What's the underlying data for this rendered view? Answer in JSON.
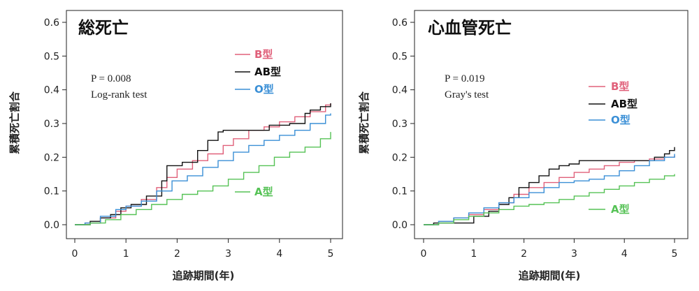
{
  "chart_data": [
    {
      "type": "line",
      "title": "総死亡",
      "xlabel": "追跡期間(年)",
      "ylabel": "累積死亡割合",
      "xlim": [
        0,
        5
      ],
      "ylim": [
        0,
        0.6
      ],
      "x_ticks": [
        "0",
        "1",
        "2",
        "3",
        "4",
        "5"
      ],
      "y_ticks": [
        "0.0",
        "0.1",
        "0.2",
        "0.3",
        "0.4",
        "0.5",
        "0.6"
      ],
      "stat_p": "P = 0.008",
      "stat_test": "Log-rank test",
      "step": true,
      "series": [
        {
          "name": "B型",
          "color": "#e0607a",
          "x": [
            0,
            0.2,
            0.5,
            0.8,
            1.0,
            1.3,
            1.6,
            1.8,
            2.0,
            2.3,
            2.6,
            2.9,
            3.1,
            3.4,
            3.7,
            4.0,
            4.3,
            4.6,
            4.9,
            5.0
          ],
          "y": [
            0,
            0.005,
            0.02,
            0.04,
            0.055,
            0.075,
            0.11,
            0.14,
            0.165,
            0.19,
            0.21,
            0.235,
            0.255,
            0.28,
            0.29,
            0.305,
            0.32,
            0.335,
            0.355,
            0.36
          ]
        },
        {
          "name": "AB型",
          "color": "#111111",
          "x": [
            0,
            0.3,
            0.5,
            0.7,
            0.9,
            1.1,
            1.4,
            1.7,
            1.8,
            2.1,
            2.4,
            2.6,
            2.8,
            2.9,
            3.2,
            3.5,
            3.8,
            4.1,
            4.2,
            4.5,
            4.6,
            4.8,
            5.0
          ],
          "y": [
            0,
            0.01,
            0.02,
            0.03,
            0.05,
            0.06,
            0.085,
            0.13,
            0.175,
            0.185,
            0.22,
            0.25,
            0.275,
            0.28,
            0.28,
            0.28,
            0.295,
            0.295,
            0.3,
            0.33,
            0.34,
            0.35,
            0.36
          ]
        },
        {
          "name": "O型",
          "color": "#3a8fd6",
          "x": [
            0,
            0.2,
            0.5,
            0.8,
            1.0,
            1.3,
            1.6,
            1.9,
            2.2,
            2.5,
            2.8,
            3.1,
            3.4,
            3.7,
            4.0,
            4.3,
            4.6,
            4.9,
            5.0
          ],
          "y": [
            0,
            0.005,
            0.025,
            0.045,
            0.055,
            0.07,
            0.1,
            0.13,
            0.145,
            0.17,
            0.19,
            0.215,
            0.235,
            0.25,
            0.265,
            0.28,
            0.3,
            0.325,
            0.33
          ]
        },
        {
          "name": "A型",
          "color": "#55c255",
          "x": [
            0,
            0.3,
            0.6,
            0.9,
            1.2,
            1.5,
            1.8,
            2.1,
            2.4,
            2.7,
            3.0,
            3.3,
            3.6,
            3.9,
            4.2,
            4.5,
            4.8,
            5.0
          ],
          "y": [
            0,
            0.005,
            0.015,
            0.03,
            0.045,
            0.06,
            0.075,
            0.09,
            0.1,
            0.115,
            0.135,
            0.155,
            0.175,
            0.2,
            0.215,
            0.23,
            0.255,
            0.275
          ]
        }
      ]
    },
    {
      "type": "line",
      "title": "心血管死亡",
      "xlabel": "追跡期間(年)",
      "ylabel": "累積死亡割合",
      "xlim": [
        0,
        5
      ],
      "ylim": [
        0,
        0.6
      ],
      "x_ticks": [
        "0",
        "1",
        "2",
        "3",
        "4",
        "5"
      ],
      "y_ticks": [
        "0.0",
        "0.1",
        "0.2",
        "0.3",
        "0.4",
        "0.5",
        "0.6"
      ],
      "stat_p": "P = 0.019",
      "stat_test": "Gray's test",
      "step": true,
      "series": [
        {
          "name": "B型",
          "color": "#e0607a",
          "x": [
            0,
            0.3,
            0.6,
            0.9,
            1.2,
            1.5,
            1.8,
            2.1,
            2.4,
            2.7,
            3.0,
            3.3,
            3.6,
            3.9,
            4.2,
            4.5,
            4.8,
            5.0
          ],
          "y": [
            0,
            0.01,
            0.02,
            0.03,
            0.045,
            0.065,
            0.09,
            0.11,
            0.125,
            0.14,
            0.155,
            0.165,
            0.175,
            0.185,
            0.19,
            0.195,
            0.2,
            0.205
          ]
        },
        {
          "name": "AB型",
          "color": "#111111",
          "x": [
            0,
            0.2,
            0.6,
            1.0,
            1.3,
            1.5,
            1.7,
            1.9,
            2.1,
            2.3,
            2.5,
            2.7,
            2.9,
            3.1,
            3.4,
            3.7,
            4.0,
            4.3,
            4.6,
            4.8,
            4.9,
            5.0
          ],
          "y": [
            0,
            0.005,
            0.005,
            0.025,
            0.04,
            0.06,
            0.08,
            0.11,
            0.125,
            0.145,
            0.165,
            0.175,
            0.18,
            0.19,
            0.19,
            0.19,
            0.19,
            0.19,
            0.2,
            0.21,
            0.22,
            0.23
          ]
        },
        {
          "name": "O型",
          "color": "#3a8fd6",
          "x": [
            0,
            0.3,
            0.6,
            0.9,
            1.2,
            1.5,
            1.8,
            2.1,
            2.4,
            2.7,
            3.0,
            3.3,
            3.6,
            3.9,
            4.2,
            4.5,
            4.8,
            5.0
          ],
          "y": [
            0,
            0.01,
            0.02,
            0.035,
            0.05,
            0.065,
            0.08,
            0.095,
            0.11,
            0.125,
            0.13,
            0.135,
            0.145,
            0.16,
            0.175,
            0.19,
            0.2,
            0.21
          ]
        },
        {
          "name": "A型",
          "color": "#55c255",
          "x": [
            0,
            0.3,
            0.6,
            0.9,
            1.2,
            1.5,
            1.8,
            2.1,
            2.4,
            2.7,
            3.0,
            3.3,
            3.6,
            3.9,
            4.2,
            4.5,
            4.8,
            5.0
          ],
          "y": [
            0,
            0.005,
            0.015,
            0.025,
            0.035,
            0.045,
            0.055,
            0.06,
            0.065,
            0.075,
            0.085,
            0.095,
            0.105,
            0.115,
            0.125,
            0.135,
            0.145,
            0.15
          ]
        }
      ]
    }
  ]
}
